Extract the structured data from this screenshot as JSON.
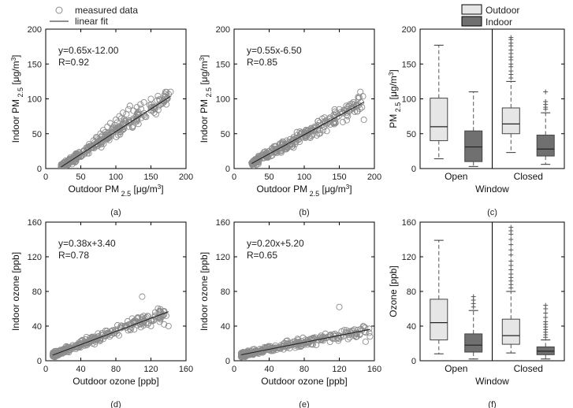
{
  "legend": {
    "scatter_marker_label": "measured data",
    "fit_line_label": "linear fit",
    "outdoor_label": "Outdoor",
    "indoor_label": "Indoor"
  },
  "colors": {
    "outdoor_box": "#e6e6e6",
    "indoor_box": "#707070",
    "marker": "#8c8c8c",
    "fit_line": "#222222",
    "axis": "#000000"
  },
  "chart_data": [
    {
      "id": "a",
      "type": "scatter",
      "caption": "(a)",
      "title": "",
      "xlabel": "Outdoor PM",
      "xlabel_sub": "2.5",
      "xlabel_unit": "[μg/m3]",
      "ylabel": "Indoor PM",
      "ylabel_sub": "2.5",
      "ylabel_unit": "[μg/m3]",
      "xlim": [
        0,
        200
      ],
      "ylim": [
        0,
        200
      ],
      "xticks": [
        0,
        50,
        100,
        150,
        200
      ],
      "yticks": [
        0,
        50,
        100,
        150,
        200
      ],
      "equation": "y=0.65x-12.00",
      "r_text": "R=0.92",
      "fit": {
        "slope": 0.65,
        "intercept": -12.0
      },
      "x_range": [
        22,
        178
      ],
      "noise": 11,
      "points": [
        [
          22,
          5
        ],
        [
          25,
          8
        ],
        [
          28,
          3
        ],
        [
          30,
          10
        ],
        [
          32,
          6
        ],
        [
          35,
          14
        ],
        [
          38,
          12
        ],
        [
          40,
          18
        ],
        [
          42,
          9
        ],
        [
          45,
          20
        ],
        [
          48,
          22
        ],
        [
          50,
          17
        ],
        [
          55,
          25
        ],
        [
          58,
          30
        ],
        [
          60,
          28
        ],
        [
          62,
          35
        ],
        [
          65,
          33
        ],
        [
          68,
          40
        ],
        [
          70,
          38
        ],
        [
          72,
          45
        ],
        [
          75,
          42
        ],
        [
          78,
          50
        ],
        [
          80,
          47
        ],
        [
          82,
          55
        ],
        [
          85,
          52
        ],
        [
          88,
          60
        ],
        [
          90,
          48
        ],
        [
          92,
          65
        ],
        [
          95,
          58
        ],
        [
          98,
          62
        ],
        [
          100,
          70
        ],
        [
          102,
          66
        ],
        [
          105,
          75
        ],
        [
          108,
          72
        ],
        [
          110,
          80
        ],
        [
          112,
          68
        ],
        [
          115,
          78
        ],
        [
          118,
          85
        ],
        [
          120,
          90
        ],
        [
          125,
          83
        ],
        [
          130,
          88
        ],
        [
          135,
          92
        ],
        [
          140,
          95
        ],
        [
          150,
          100
        ],
        [
          160,
          104
        ],
        [
          170,
          107
        ],
        [
          178,
          110
        ]
      ]
    },
    {
      "id": "b",
      "type": "scatter",
      "caption": "(b)",
      "title": "",
      "xlabel": "Outdoor PM",
      "xlabel_sub": "2.5",
      "xlabel_unit": "[μg/m3]",
      "ylabel": "Indoor PM",
      "ylabel_sub": "2.5",
      "ylabel_unit": "[μg/m3]",
      "xlim": [
        0,
        200
      ],
      "ylim": [
        0,
        200
      ],
      "xticks": [
        0,
        50,
        100,
        150,
        200
      ],
      "yticks": [
        0,
        50,
        100,
        150,
        200
      ],
      "equation": "y=0.55x-6.50",
      "r_text": "R=0.85",
      "fit": {
        "slope": 0.55,
        "intercept": -6.5
      },
      "x_range": [
        25,
        185
      ],
      "noise": 12,
      "points": [
        [
          25,
          8
        ],
        [
          30,
          12
        ],
        [
          35,
          15
        ],
        [
          40,
          20
        ],
        [
          45,
          18
        ],
        [
          50,
          25
        ],
        [
          55,
          28
        ],
        [
          60,
          32
        ],
        [
          65,
          30
        ],
        [
          70,
          38
        ],
        [
          75,
          40
        ],
        [
          80,
          42
        ],
        [
          85,
          45
        ],
        [
          90,
          48
        ],
        [
          95,
          50
        ],
        [
          100,
          52
        ],
        [
          105,
          55
        ],
        [
          110,
          58
        ],
        [
          115,
          60
        ],
        [
          120,
          62
        ],
        [
          130,
          65
        ],
        [
          140,
          70
        ],
        [
          150,
          85
        ],
        [
          160,
          90
        ],
        [
          170,
          95
        ],
        [
          180,
          110
        ],
        [
          185,
          70
        ]
      ]
    },
    {
      "id": "d",
      "type": "scatter",
      "caption": "(d)",
      "title": "",
      "xlabel": "Outdoor ozone [ppb]",
      "xlabel_sub": "",
      "xlabel_unit": "",
      "ylabel": "Indoor ozone [ppb]",
      "ylabel_sub": "",
      "ylabel_unit": "",
      "xlim": [
        0,
        160
      ],
      "ylim": [
        0,
        160
      ],
      "xticks": [
        0,
        40,
        80,
        120,
        160
      ],
      "yticks": [
        0,
        40,
        80,
        120,
        160
      ],
      "equation": "y=0.38x+3.40",
      "r_text": "R=0.78",
      "fit": {
        "slope": 0.38,
        "intercept": 3.4
      },
      "x_range": [
        8,
        140
      ],
      "noise": 8,
      "points": [
        [
          8,
          6
        ],
        [
          10,
          8
        ],
        [
          12,
          7
        ],
        [
          15,
          9
        ],
        [
          18,
          10
        ],
        [
          20,
          12
        ],
        [
          25,
          14
        ],
        [
          30,
          16
        ],
        [
          35,
          18
        ],
        [
          40,
          20
        ],
        [
          45,
          22
        ],
        [
          50,
          24
        ],
        [
          55,
          26
        ],
        [
          60,
          28
        ],
        [
          65,
          30
        ],
        [
          70,
          32
        ],
        [
          75,
          34
        ],
        [
          80,
          36
        ],
        [
          85,
          38
        ],
        [
          90,
          40
        ],
        [
          95,
          42
        ],
        [
          100,
          44
        ],
        [
          105,
          50
        ],
        [
          110,
          74
        ],
        [
          120,
          40
        ],
        [
          130,
          45
        ],
        [
          135,
          42
        ],
        [
          140,
          40
        ]
      ]
    },
    {
      "id": "e",
      "type": "scatter",
      "caption": "(e)",
      "title": "",
      "xlabel": "Outdoor ozone [ppb]",
      "xlabel_sub": "",
      "xlabel_unit": "",
      "ylabel": "Indoor ozone [ppb]",
      "ylabel_sub": "",
      "ylabel_unit": "",
      "xlim": [
        0,
        160
      ],
      "ylim": [
        0,
        160
      ],
      "xticks": [
        0,
        40,
        80,
        120,
        160
      ],
      "yticks": [
        0,
        40,
        80,
        120,
        160
      ],
      "equation": "y=0.20x+5.20",
      "r_text": "R=0.65",
      "fit": {
        "slope": 0.2,
        "intercept": 5.2
      },
      "x_range": [
        8,
        155
      ],
      "noise": 7,
      "points": [
        [
          8,
          5
        ],
        [
          10,
          6
        ],
        [
          12,
          7
        ],
        [
          15,
          8
        ],
        [
          20,
          9
        ],
        [
          25,
          10
        ],
        [
          30,
          11
        ],
        [
          35,
          12
        ],
        [
          40,
          13
        ],
        [
          45,
          14
        ],
        [
          50,
          15
        ],
        [
          55,
          16
        ],
        [
          60,
          17
        ],
        [
          65,
          18
        ],
        [
          70,
          19
        ],
        [
          75,
          20
        ],
        [
          80,
          21
        ],
        [
          85,
          22
        ],
        [
          90,
          23
        ],
        [
          95,
          24
        ],
        [
          100,
          25
        ],
        [
          110,
          30
        ],
        [
          120,
          62
        ],
        [
          130,
          25
        ],
        [
          140,
          28
        ],
        [
          150,
          22
        ],
        [
          155,
          28
        ]
      ]
    },
    {
      "id": "c",
      "type": "box",
      "caption": "(c)",
      "xlabel": "Window",
      "ylabel": "PM",
      "ylabel_sub": "2.5",
      "ylabel_unit": "[μg/m3]",
      "ylim": [
        0,
        200
      ],
      "yticks": [
        0,
        50,
        100,
        150,
        200
      ],
      "categories": [
        "Open",
        "Closed"
      ],
      "series": [
        {
          "name": "Outdoor",
          "group": "Open",
          "whisker_low": 14,
          "q1": 40,
          "median": 60,
          "q3": 101,
          "whisker_high": 177,
          "outliers": []
        },
        {
          "name": "Indoor",
          "group": "Open",
          "whisker_low": 3,
          "q1": 10,
          "median": 31,
          "q3": 54,
          "whisker_high": 110,
          "outliers": []
        },
        {
          "name": "Outdoor",
          "group": "Closed",
          "whisker_low": 23,
          "q1": 50,
          "median": 64,
          "q3": 87,
          "whisker_high": 125,
          "outliers": [
            130,
            135,
            140,
            146,
            150,
            156,
            160,
            165,
            170,
            176,
            180,
            185,
            188
          ]
        },
        {
          "name": "Indoor",
          "group": "Closed",
          "whisker_low": 6,
          "q1": 18,
          "median": 28,
          "q3": 48,
          "whisker_high": 80,
          "outliers": [
            85,
            88,
            92,
            96,
            110
          ]
        }
      ]
    },
    {
      "id": "f",
      "type": "box",
      "caption": "(f)",
      "xlabel": "Window",
      "ylabel": "Ozone [ppb]",
      "ylabel_sub": "",
      "ylabel_unit": "",
      "ylim": [
        0,
        160
      ],
      "yticks": [
        0,
        40,
        80,
        120,
        160
      ],
      "categories": [
        "Open",
        "Closed"
      ],
      "series": [
        {
          "name": "Outdoor",
          "group": "Open",
          "whisker_low": 8,
          "q1": 24,
          "median": 44,
          "q3": 71,
          "whisker_high": 139,
          "outliers": []
        },
        {
          "name": "Indoor",
          "group": "Open",
          "whisker_low": 2,
          "q1": 10,
          "median": 18,
          "q3": 31,
          "whisker_high": 58,
          "outliers": [
            62,
            66,
            70,
            74
          ]
        },
        {
          "name": "Outdoor",
          "group": "Closed",
          "whisker_low": 9,
          "q1": 19,
          "median": 29,
          "q3": 48,
          "whisker_high": 80,
          "outliers": [
            84,
            88,
            92,
            96,
            100,
            105,
            110,
            115,
            122,
            128,
            134,
            140,
            146,
            150,
            154
          ]
        },
        {
          "name": "Indoor",
          "group": "Closed",
          "whisker_low": 2,
          "q1": 7,
          "median": 11,
          "q3": 16,
          "whisker_high": 24,
          "outliers": [
            27,
            30,
            33,
            36,
            39,
            42,
            45,
            50,
            55,
            60,
            64
          ]
        }
      ]
    }
  ]
}
